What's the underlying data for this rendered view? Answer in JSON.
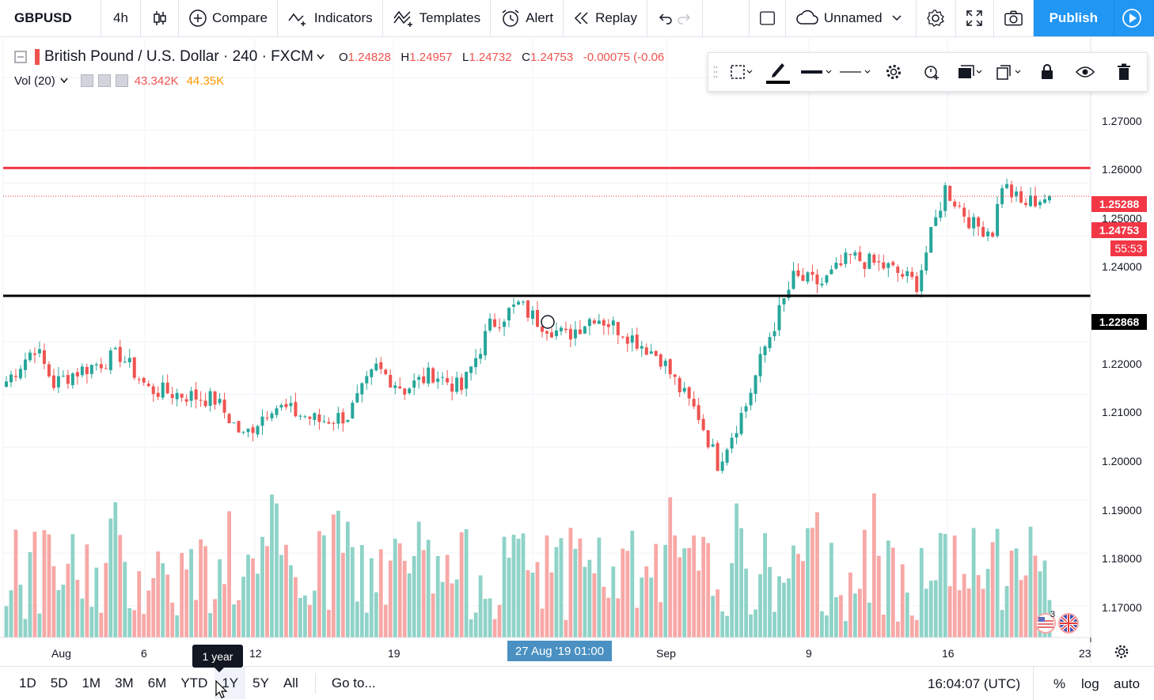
{
  "toolbar": {
    "symbol": "GBPUSD",
    "interval": "4h",
    "compare": "Compare",
    "indicators": "Indicators",
    "templates": "Templates",
    "alert": "Alert",
    "replay": "Replay",
    "layout_name": "Unnamed",
    "publish": "Publish"
  },
  "legend": {
    "title": "British Pound / U.S. Dollar · 240 · FXCM",
    "open": "1.24828",
    "high": "1.24957",
    "low": "1.24732",
    "close": "1.24753",
    "change": "-0.00075 (-0.06",
    "o_label": "O",
    "h_label": "H",
    "l_label": "L",
    "c_label": "C"
  },
  "volume_legend": {
    "label": "Vol (20)",
    "value1": "43.342K",
    "value2": "44.35K"
  },
  "price_axis": {
    "ticks": [
      "1.27000",
      "1.26000",
      "1.25000",
      "1.24000",
      "1.22000",
      "1.21000",
      "1.20000",
      "1.19000",
      "1.18000",
      "1.17000"
    ],
    "red_line_price": "1.25288",
    "current_price": "1.24753",
    "countdown": "55:53",
    "black_line_price": "1.22868"
  },
  "time_axis": {
    "labels": [
      "Aug",
      "6",
      "12",
      "19",
      "Sep",
      "9",
      "16",
      "23"
    ],
    "crosshair": "27 Aug '19   01:00"
  },
  "bottom_bar": {
    "ranges": [
      "1D",
      "5D",
      "1M",
      "3M",
      "6M",
      "YTD",
      "1Y",
      "5Y",
      "All"
    ],
    "goto": "Go to...",
    "clock": "16:04:07 (UTC)",
    "percent": "%",
    "log": "log",
    "auto": "auto",
    "tooltip": "1 year"
  },
  "events": {
    "count": "3"
  },
  "colors": {
    "up": "#26a69a",
    "down": "#ef5350",
    "vol_up": "#8fd3c8",
    "vol_down": "#f7a8a6",
    "accent": "#2196f3"
  },
  "chart_data": {
    "type": "candlestick",
    "symbol": "GBPUSD",
    "interval": "240",
    "ylim": [
      1.164,
      1.2775
    ],
    "horizontal_lines": [
      {
        "price": 1.25288,
        "color": "#f23645"
      },
      {
        "price": 1.22868,
        "color": "#000000"
      }
    ],
    "anchors": [
      [
        0,
        1.2125
      ],
      [
        6,
        1.219
      ],
      [
        10,
        1.212
      ],
      [
        14,
        1.214
      ],
      [
        24,
        1.2175
      ],
      [
        30,
        1.211
      ],
      [
        44,
        1.209
      ],
      [
        50,
        1.202
      ],
      [
        56,
        1.208
      ],
      [
        66,
        1.205
      ],
      [
        72,
        1.206
      ],
      [
        78,
        1.215
      ],
      [
        84,
        1.211
      ],
      [
        90,
        1.214
      ],
      [
        96,
        1.211
      ],
      [
        102,
        1.223
      ],
      [
        108,
        1.227
      ],
      [
        112,
        1.224
      ],
      [
        118,
        1.221
      ],
      [
        124,
        1.225
      ],
      [
        130,
        1.222
      ],
      [
        138,
        1.217
      ],
      [
        142,
        1.211
      ],
      [
        146,
        1.206
      ],
      [
        150,
        1.197
      ],
      [
        156,
        1.208
      ],
      [
        160,
        1.219
      ],
      [
        166,
        1.232
      ],
      [
        172,
        1.231
      ],
      [
        178,
        1.236
      ],
      [
        186,
        1.234
      ],
      [
        192,
        1.231
      ],
      [
        198,
        1.249
      ],
      [
        204,
        1.242
      ],
      [
        208,
        1.241
      ],
      [
        210,
        1.25
      ],
      [
        214,
        1.246
      ],
      [
        220,
        1.2475
      ]
    ]
  }
}
